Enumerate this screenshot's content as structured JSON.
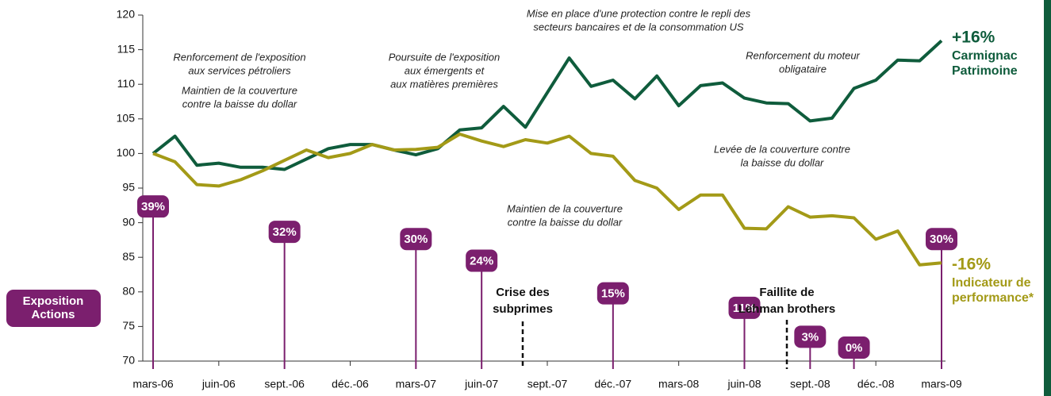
{
  "chart_data": {
    "type": "line",
    "categories": [
      "mars-06",
      null,
      null,
      "juin-06",
      null,
      null,
      "sept.-06",
      null,
      null,
      "déc.-06",
      null,
      null,
      "mars-07",
      null,
      null,
      "juin-07",
      null,
      null,
      "sept.-07",
      null,
      null,
      "déc.-07",
      null,
      null,
      "mars-08",
      null,
      null,
      "juin-08",
      null,
      null,
      "sept.-08",
      null,
      null,
      "déc.-08",
      null,
      null,
      "mars-09"
    ],
    "ylim": [
      70,
      120
    ],
    "yticks": [
      70,
      75,
      80,
      85,
      90,
      95,
      100,
      105,
      110,
      115,
      120
    ],
    "series": [
      {
        "name": [
          "+16%",
          "Carmignac",
          "Patrimoine"
        ],
        "color": "#0f5c3c",
        "values": [
          100,
          102.5,
          98.3,
          98.6,
          98,
          98,
          97.7,
          99.2,
          100.7,
          101.3,
          101.3,
          100.5,
          99.8,
          100.7,
          103.4,
          103.7,
          106.8,
          103.8,
          108.8,
          113.8,
          109.7,
          110.6,
          107.9,
          111.2,
          106.9,
          109.8,
          110.2,
          108,
          107.3,
          107.2,
          104.7,
          105.1,
          109.4,
          110.6,
          113.5,
          113.4,
          116.3
        ]
      },
      {
        "name": [
          "-16%",
          "Indicateur de",
          "performance*"
        ],
        "color": "#a39a17",
        "values": [
          100,
          98.8,
          95.5,
          95.3,
          96.2,
          97.5,
          99,
          100.5,
          99.4,
          100,
          101.3,
          100.5,
          100.6,
          100.9,
          102.8,
          101.8,
          101,
          102,
          101.5,
          102.5,
          100,
          99.6,
          96.1,
          95,
          91.9,
          94,
          94,
          89.2,
          89.1,
          92.3,
          90.8,
          91,
          90.7,
          87.6,
          88.8,
          83.9,
          84.2
        ]
      }
    ],
    "exposure": {
      "label": [
        "Exposition",
        "Actions"
      ],
      "color": "#7b1f6e",
      "values": [
        39,
        null,
        null,
        null,
        null,
        null,
        32,
        null,
        null,
        null,
        null,
        null,
        30,
        null,
        null,
        24,
        null,
        null,
        null,
        null,
        null,
        15,
        null,
        null,
        null,
        null,
        null,
        11,
        null,
        null,
        3,
        null,
        0,
        null,
        null,
        null,
        30
      ],
      "value_labels": [
        "39%",
        null,
        null,
        null,
        null,
        null,
        "32%",
        null,
        null,
        null,
        null,
        null,
        "30%",
        null,
        null,
        "24%",
        null,
        null,
        null,
        null,
        null,
        "15%",
        null,
        null,
        null,
        null,
        null,
        "11%",
        null,
        null,
        "3%",
        null,
        "0%",
        null,
        null,
        null,
        "30%"
      ]
    },
    "annotations": [
      [
        "Renforcement de l'exposition",
        "aux services pétroliers"
      ],
      [
        "Maintien de la couverture",
        "contre la baisse du dollar"
      ],
      [
        "Poursuite de l'exposition",
        "aux émergents et",
        "aux matières premières"
      ],
      [
        "Mise en place d'une protection contre le repli des",
        "secteurs bancaires et de la consommation US"
      ],
      [
        "Renforcement du moteur",
        "obligataire"
      ],
      [
        "Levée de la couverture contre",
        "la baisse du dollar"
      ],
      [
        "Maintien de la couverture",
        "contre la baisse du dollar"
      ]
    ],
    "events": [
      [
        "Crise des",
        "subprimes"
      ],
      [
        "Faillite de",
        "Lehman brothers"
      ]
    ]
  }
}
